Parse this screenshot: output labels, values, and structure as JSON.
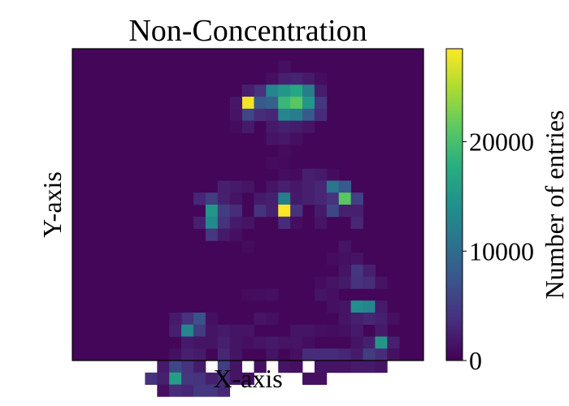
{
  "chart_data": {
    "type": "heatmap",
    "title": "Non-Concentration",
    "xlabel": "X-axis",
    "ylabel": "Y-axis",
    "colorbar": {
      "label": "Number of entries",
      "range": [
        0,
        28500
      ],
      "ticks": [
        0,
        10000,
        20000
      ],
      "tick_labels": [
        "0",
        "10000",
        "20000"
      ],
      "colormap": "viridis"
    },
    "grid_size": [
      29,
      26
    ],
    "background_value": 400,
    "cells": [
      [
        17,
        2,
        2500
      ],
      [
        18,
        2,
        2800
      ],
      [
        19,
        2,
        2000
      ],
      [
        16,
        2,
        1200
      ],
      [
        20,
        2,
        1000
      ],
      [
        17,
        1,
        1200
      ],
      [
        15,
        3,
        4000
      ],
      [
        16,
        3,
        13000
      ],
      [
        17,
        3,
        15000
      ],
      [
        18,
        3,
        17000
      ],
      [
        19,
        3,
        12000
      ],
      [
        14,
        3,
        2500
      ],
      [
        20,
        3,
        2200
      ],
      [
        14,
        4,
        28000
      ],
      [
        15,
        4,
        8000
      ],
      [
        16,
        4,
        9000
      ],
      [
        17,
        4,
        19000
      ],
      [
        18,
        4,
        21000
      ],
      [
        19,
        4,
        15000
      ],
      [
        20,
        4,
        4500
      ],
      [
        13,
        4,
        1800
      ],
      [
        14,
        5,
        6000
      ],
      [
        15,
        5,
        3500
      ],
      [
        16,
        5,
        3000
      ],
      [
        17,
        5,
        13000
      ],
      [
        18,
        5,
        12000
      ],
      [
        19,
        5,
        8000
      ],
      [
        20,
        5,
        3500
      ],
      [
        13,
        5,
        1500
      ],
      [
        14,
        6,
        2000
      ],
      [
        16,
        6,
        2000
      ],
      [
        17,
        6,
        2500
      ],
      [
        18,
        6,
        2200
      ],
      [
        19,
        6,
        1500
      ],
      [
        13,
        6,
        900
      ],
      [
        16,
        7,
        1500
      ],
      [
        17,
        7,
        1800
      ],
      [
        18,
        7,
        1200
      ],
      [
        17,
        8,
        900
      ],
      [
        16,
        9,
        900
      ],
      [
        17,
        9,
        700
      ],
      [
        17,
        10,
        1000
      ],
      [
        18,
        10,
        800
      ],
      [
        19,
        10,
        2500
      ],
      [
        20,
        10,
        2000
      ],
      [
        21,
        10,
        1000
      ],
      [
        12,
        11,
        2500
      ],
      [
        13,
        11,
        2000
      ],
      [
        14,
        11,
        1500
      ],
      [
        16,
        11,
        1500
      ],
      [
        17,
        11,
        2500
      ],
      [
        18,
        11,
        1800
      ],
      [
        19,
        11,
        2500
      ],
      [
        20,
        11,
        3000
      ],
      [
        21,
        11,
        11000
      ],
      [
        22,
        11,
        8000
      ],
      [
        10,
        12,
        3000
      ],
      [
        11,
        12,
        5000
      ],
      [
        12,
        12,
        2500
      ],
      [
        13,
        12,
        1500
      ],
      [
        15,
        12,
        2000
      ],
      [
        16,
        12,
        2500
      ],
      [
        17,
        12,
        12000
      ],
      [
        18,
        12,
        2000
      ],
      [
        19,
        12,
        2500
      ],
      [
        20,
        12,
        3000
      ],
      [
        21,
        12,
        4000
      ],
      [
        22,
        12,
        21000
      ],
      [
        23,
        12,
        5500
      ],
      [
        11,
        13,
        15000
      ],
      [
        12,
        13,
        5000
      ],
      [
        13,
        13,
        3500
      ],
      [
        15,
        13,
        4000
      ],
      [
        16,
        13,
        2500
      ],
      [
        17,
        13,
        28500
      ],
      [
        18,
        13,
        4000
      ],
      [
        20,
        13,
        2000
      ],
      [
        21,
        13,
        6000
      ],
      [
        22,
        13,
        2500
      ],
      [
        23,
        13,
        2500
      ],
      [
        10,
        14,
        2500
      ],
      [
        11,
        14,
        13500
      ],
      [
        12,
        14,
        4000
      ],
      [
        13,
        14,
        2000
      ],
      [
        14,
        14,
        1500
      ],
      [
        17,
        14,
        3500
      ],
      [
        18,
        14,
        1000
      ],
      [
        20,
        14,
        1500
      ],
      [
        23,
        14,
        3000
      ],
      [
        11,
        15,
        4500
      ],
      [
        12,
        15,
        2000
      ],
      [
        13,
        15,
        1200
      ],
      [
        14,
        16,
        900
      ],
      [
        22,
        16,
        1500
      ],
      [
        23,
        17,
        1500
      ],
      [
        21,
        17,
        1000
      ],
      [
        22,
        17,
        1200
      ],
      [
        23,
        18,
        4500
      ],
      [
        24,
        18,
        2500
      ],
      [
        22,
        18,
        1500
      ],
      [
        20,
        19,
        1000
      ],
      [
        21,
        19,
        1500
      ],
      [
        22,
        19,
        2000
      ],
      [
        23,
        19,
        4000
      ],
      [
        24,
        19,
        3500
      ],
      [
        25,
        19,
        1500
      ],
      [
        15,
        20,
        1000
      ],
      [
        16,
        20,
        1200
      ],
      [
        14,
        20,
        900
      ],
      [
        20,
        20,
        1500
      ],
      [
        21,
        20,
        1200
      ],
      [
        22,
        21,
        1500
      ],
      [
        23,
        21,
        14000
      ],
      [
        24,
        21,
        13000
      ],
      [
        25,
        21,
        2000
      ],
      [
        21,
        21,
        1200
      ],
      [
        9,
        22,
        4000
      ],
      [
        10,
        22,
        7000
      ],
      [
        8,
        22,
        2000
      ],
      [
        11,
        22,
        1200
      ],
      [
        15,
        22,
        1500
      ],
      [
        16,
        22,
        1200
      ],
      [
        22,
        22,
        1500
      ],
      [
        23,
        22,
        2500
      ],
      [
        24,
        22,
        3000
      ],
      [
        25,
        22,
        2500
      ],
      [
        26,
        22,
        1200
      ],
      [
        8,
        23,
        2500
      ],
      [
        9,
        23,
        13000
      ],
      [
        10,
        23,
        5000
      ],
      [
        11,
        23,
        1500
      ],
      [
        12,
        23,
        2000
      ],
      [
        13,
        23,
        1500
      ],
      [
        14,
        23,
        1500
      ],
      [
        18,
        23,
        1500
      ],
      [
        19,
        23,
        1500
      ],
      [
        20,
        23,
        1200
      ],
      [
        21,
        23,
        1000
      ],
      [
        22,
        23,
        1200
      ],
      [
        23,
        23,
        2000
      ],
      [
        25,
        23,
        2000
      ],
      [
        9,
        24,
        2000
      ],
      [
        10,
        24,
        1500
      ],
      [
        11,
        24,
        1500
      ],
      [
        12,
        24,
        2500
      ],
      [
        13,
        24,
        1500
      ],
      [
        14,
        24,
        1200
      ],
      [
        15,
        24,
        1500
      ],
      [
        16,
        24,
        2000
      ],
      [
        17,
        24,
        1500
      ],
      [
        18,
        24,
        1500
      ],
      [
        19,
        24,
        1000
      ],
      [
        23,
        24,
        1500
      ],
      [
        24,
        24,
        2500
      ],
      [
        25,
        24,
        15000
      ],
      [
        26,
        24,
        2500
      ],
      [
        8,
        25,
        1200
      ],
      [
        9,
        25,
        2500
      ],
      [
        10,
        25,
        2000
      ],
      [
        12,
        25,
        3000
      ],
      [
        13,
        25,
        1500
      ],
      [
        16,
        25,
        1500
      ],
      [
        18,
        25,
        1200
      ],
      [
        19,
        25,
        3500
      ],
      [
        20,
        25,
        3500
      ],
      [
        21,
        25,
        3500
      ],
      [
        22,
        25,
        3000
      ],
      [
        23,
        25,
        2000
      ],
      [
        24,
        25,
        5000
      ],
      [
        25,
        25,
        3500
      ],
      [
        26,
        25,
        1200
      ],
      [
        7,
        26,
        2000
      ],
      [
        8,
        26,
        6000
      ],
      [
        9,
        26,
        4000
      ],
      [
        10,
        26,
        2000
      ],
      [
        12,
        26,
        5000
      ],
      [
        13,
        26,
        1500
      ],
      [
        15,
        26,
        1200
      ],
      [
        17,
        26,
        1500
      ],
      [
        18,
        26,
        1200
      ],
      [
        20,
        26,
        1500
      ],
      [
        21,
        26,
        1500
      ],
      [
        22,
        26,
        1500
      ],
      [
        23,
        26,
        2000
      ],
      [
        24,
        26,
        2000
      ],
      [
        25,
        26,
        1500
      ],
      [
        6,
        27,
        4000
      ],
      [
        7,
        27,
        2500
      ],
      [
        8,
        27,
        16000
      ],
      [
        9,
        27,
        4500
      ],
      [
        10,
        27,
        4000
      ],
      [
        11,
        27,
        2500
      ],
      [
        12,
        27,
        3500
      ],
      [
        13,
        27,
        1500
      ],
      [
        14,
        27,
        1200
      ],
      [
        19,
        27,
        1200
      ],
      [
        20,
        27,
        1200
      ],
      [
        7,
        28,
        1200
      ],
      [
        8,
        28,
        3500
      ],
      [
        9,
        28,
        3000
      ],
      [
        10,
        28,
        4500
      ],
      [
        11,
        28,
        4500
      ],
      [
        12,
        28,
        3000
      ]
    ]
  }
}
